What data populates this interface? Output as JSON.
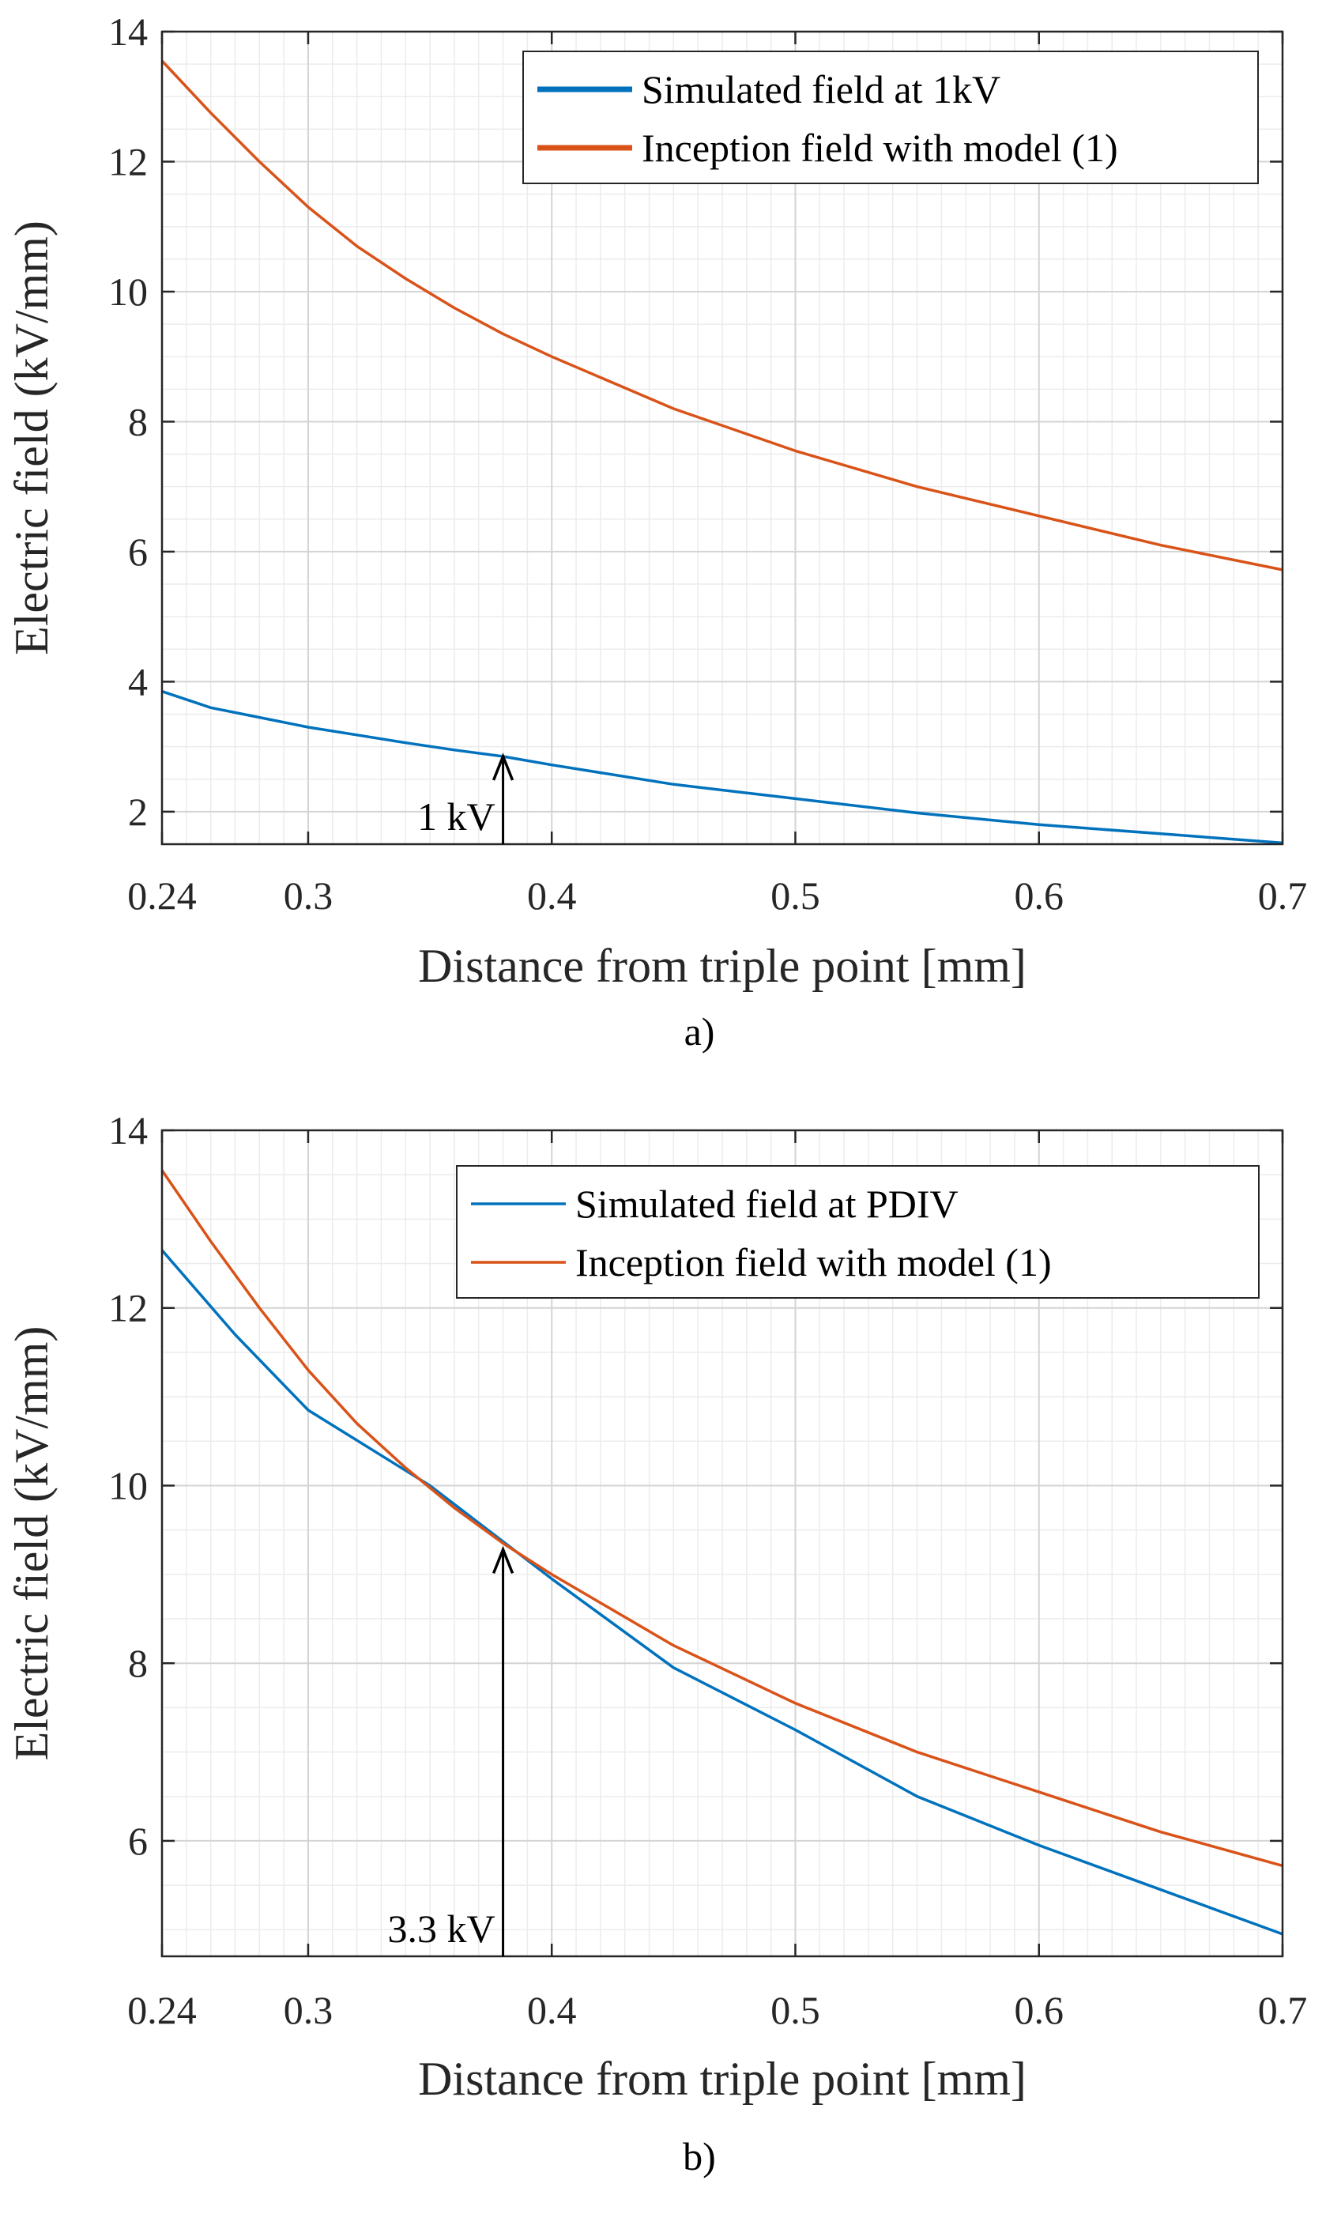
{
  "chart_data": [
    {
      "type": "line",
      "panel_label": "a)",
      "xlabel": "Distance from triple point [mm]",
      "ylabel": "Electric field (kV/mm)",
      "xlim": [
        0.24,
        0.7
      ],
      "ylim": [
        1.5,
        14
      ],
      "xticks": [
        0.24,
        0.3,
        0.4,
        0.5,
        0.6,
        0.7
      ],
      "xtick_labels": [
        "0.24",
        "0.3",
        "0.4",
        "0.5",
        "0.6",
        "0.7"
      ],
      "yticks": [
        2,
        4,
        6,
        8,
        10,
        12,
        14
      ],
      "ytick_labels": [
        "2",
        "4",
        "6",
        "8",
        "10",
        "12",
        "14"
      ],
      "grid": true,
      "minor_grid": true,
      "legend_position": "top-right",
      "series": [
        {
          "name": "Simulated field at 1kV",
          "color": "#0072BD",
          "thick_legend": true,
          "x": [
            0.24,
            0.26,
            0.28,
            0.3,
            0.32,
            0.34,
            0.36,
            0.38,
            0.4,
            0.45,
            0.5,
            0.55,
            0.6,
            0.65,
            0.7
          ],
          "y": [
            3.85,
            3.6,
            3.45,
            3.3,
            3.18,
            3.06,
            2.95,
            2.85,
            2.72,
            2.42,
            2.2,
            1.98,
            1.8,
            1.66,
            1.52
          ]
        },
        {
          "name": "Inception field with model (1)",
          "color": "#D95319",
          "thick_legend": true,
          "x": [
            0.24,
            0.26,
            0.28,
            0.3,
            0.32,
            0.34,
            0.36,
            0.38,
            0.4,
            0.45,
            0.5,
            0.55,
            0.6,
            0.65,
            0.7
          ],
          "y": [
            13.55,
            12.75,
            12.0,
            11.3,
            10.7,
            10.2,
            9.75,
            9.35,
            9.0,
            8.2,
            7.55,
            7.0,
            6.55,
            6.1,
            5.72
          ]
        }
      ],
      "annotations": [
        {
          "text": "1 kV",
          "arrow_x": 0.38,
          "arrow_y_from": 1.5,
          "arrow_y_to": 2.85
        }
      ]
    },
    {
      "type": "line",
      "panel_label": "b)",
      "xlabel": "Distance from triple point [mm]",
      "ylabel": "Electric field (kV/mm)",
      "xlim": [
        0.24,
        0.7
      ],
      "ylim": [
        4.7,
        14
      ],
      "xticks": [
        0.24,
        0.3,
        0.4,
        0.5,
        0.6,
        0.7
      ],
      "xtick_labels": [
        "0.24",
        "0.3",
        "0.4",
        "0.5",
        "0.6",
        "0.7"
      ],
      "yticks": [
        6,
        8,
        10,
        12,
        14
      ],
      "ytick_labels": [
        "6",
        "8",
        "10",
        "12",
        "14"
      ],
      "grid": true,
      "minor_grid": true,
      "legend_position": "top-right",
      "series": [
        {
          "name": "Simulated field at PDIV",
          "color": "#0072BD",
          "thick_legend": false,
          "x": [
            0.24,
            0.27,
            0.3,
            0.35,
            0.4,
            0.45,
            0.5,
            0.55,
            0.6,
            0.65,
            0.7
          ],
          "y": [
            12.65,
            11.7,
            10.85,
            10.0,
            8.95,
            7.95,
            7.25,
            6.5,
            5.95,
            5.45,
            4.95
          ]
        },
        {
          "name": "Inception field with model (1)",
          "color": "#D95319",
          "thick_legend": false,
          "x": [
            0.24,
            0.26,
            0.28,
            0.3,
            0.32,
            0.34,
            0.36,
            0.38,
            0.4,
            0.45,
            0.5,
            0.55,
            0.6,
            0.65,
            0.7
          ],
          "y": [
            13.55,
            12.75,
            12.0,
            11.3,
            10.7,
            10.2,
            9.75,
            9.35,
            9.0,
            8.2,
            7.55,
            7.0,
            6.55,
            6.1,
            5.72
          ]
        }
      ],
      "annotations": [
        {
          "text": "3.3 kV",
          "arrow_x": 0.38,
          "arrow_y_from": 4.7,
          "arrow_y_to": 9.28
        }
      ]
    }
  ]
}
